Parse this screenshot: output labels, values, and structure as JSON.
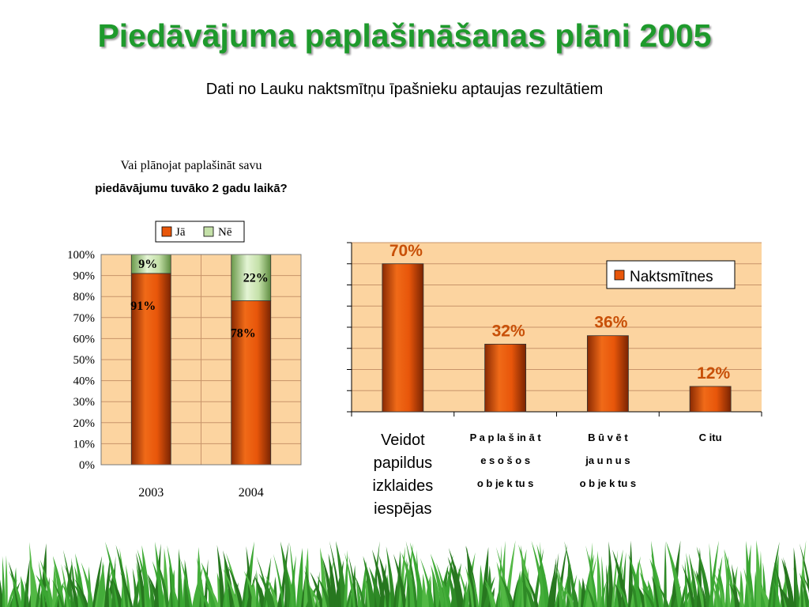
{
  "page": {
    "title": "Piedāvājuma paplašināšanas plāni 2005",
    "subtitle": "Dati no Lauku naktsmītņu īpašnieku aptaujas rezultātiem"
  },
  "colors": {
    "title": "#1e9a2c",
    "plot_bg": "#fcd4a0",
    "bar_orange": "#e8560a",
    "bar_green": "#c4e0a8",
    "label_orange": "#c85008",
    "grass": "#3aa632"
  },
  "chart_data": [
    {
      "type": "bar",
      "stacked": true,
      "title_line1": "Vai plānojat paplašināt savu",
      "title_line2": "piedāvājumu tuvāko 2 gadu laikā?",
      "categories": [
        "2003",
        "2004"
      ],
      "series": [
        {
          "name": "Jā",
          "values": [
            91,
            78
          ],
          "labels": [
            "91%",
            "78%"
          ],
          "color": "#e8560a"
        },
        {
          "name": "Nē",
          "values": [
            9,
            22
          ],
          "labels": [
            "9%",
            "22%"
          ],
          "color": "#c4e0a8"
        }
      ],
      "ylim": [
        0,
        100
      ],
      "yticks": [
        "0%",
        "10%",
        "20%",
        "30%",
        "40%",
        "50%",
        "60%",
        "70%",
        "80%",
        "90%",
        "100%"
      ],
      "grid": true,
      "legend": "top"
    },
    {
      "type": "bar",
      "categories": [
        [
          "Veidot",
          "papildus",
          "izklaides",
          "iespējas"
        ],
        [
          "P a p la š in ā t",
          "e s o š o s",
          "o b je k tu s"
        ],
        [
          "B ū v ē  t",
          "ja u n u s",
          "o b je k tu s"
        ],
        [
          "C itu"
        ]
      ],
      "series": [
        {
          "name": "Naktsmītnes",
          "values": [
            70,
            32,
            36,
            12
          ],
          "labels": [
            "70%",
            "32%",
            "36%",
            "12%"
          ],
          "color": "#e8560a"
        }
      ],
      "ylim": [
        0,
        80
      ],
      "grid": true,
      "legend": "top-right"
    }
  ]
}
